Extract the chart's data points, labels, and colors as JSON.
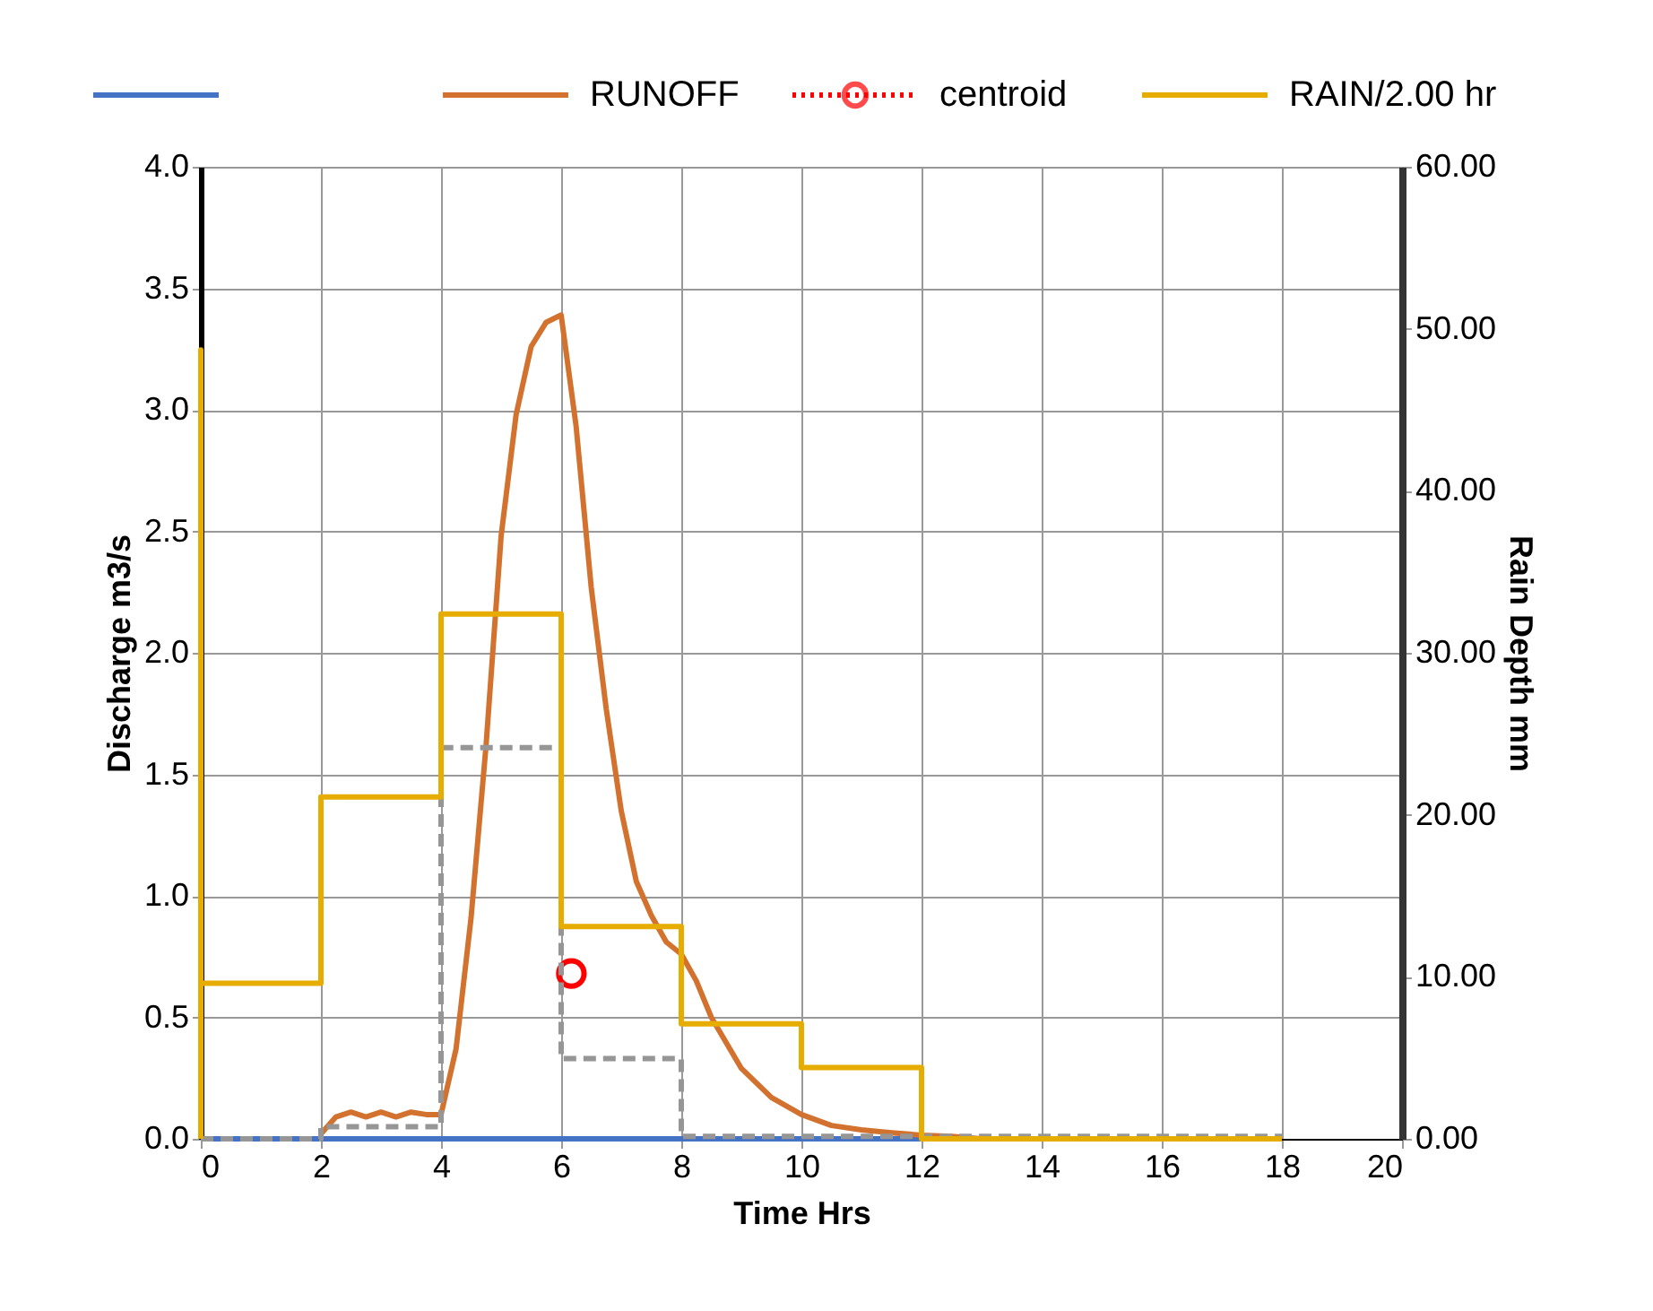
{
  "chart_data": {
    "type": "line",
    "xlabel": "Time Hrs",
    "ylabel": "Discharge m3/s",
    "y2label": "Rain Depth mm",
    "xlim": [
      0,
      20
    ],
    "xticks": [
      0,
      2,
      4,
      6,
      8,
      10,
      12,
      14,
      16,
      18,
      20
    ],
    "ylim": [
      0,
      4
    ],
    "yticks": [
      {
        "value": 0,
        "label": "0.0"
      },
      {
        "value": 0.5,
        "label": "0.5"
      },
      {
        "value": 1,
        "label": "1.0"
      },
      {
        "value": 1.5,
        "label": "1.5"
      },
      {
        "value": 2,
        "label": "2.0"
      },
      {
        "value": 2.5,
        "label": "2.5"
      },
      {
        "value": 3,
        "label": "3.0"
      },
      {
        "value": 3.5,
        "label": "3.5"
      },
      {
        "value": 4,
        "label": "4.0"
      }
    ],
    "y2lim": [
      0,
      60
    ],
    "y2ticks": [
      {
        "value": 0,
        "label": "0.00"
      },
      {
        "value": 10,
        "label": "10.00"
      },
      {
        "value": 20,
        "label": "20.00"
      },
      {
        "value": 30,
        "label": "30.00"
      },
      {
        "value": 40,
        "label": "40.00"
      },
      {
        "value": 50,
        "label": "50.00"
      },
      {
        "value": 60,
        "label": "60.00"
      }
    ],
    "grid": true,
    "legend": "top",
    "marker": "none",
    "line_style": "solid",
    "series": [
      {
        "color": "#4472c4",
        "x": [
          0,
          18
        ],
        "values": [
          0,
          0
        ]
      },
      {
        "name": "RUNOFF",
        "color": "#d2722e",
        "x": [
          2,
          2.25,
          2.5,
          2.75,
          3,
          3.25,
          3.5,
          3.75,
          4,
          4.25,
          4.5,
          4.75,
          5,
          5.25,
          5.5,
          5.75,
          6,
          6.25,
          6.5,
          6.75,
          7,
          7.25,
          7.5,
          7.75,
          8,
          8.25,
          8.5,
          9,
          9.5,
          10,
          10.5,
          11,
          11.5,
          12,
          12.5,
          13
        ],
        "values": [
          0.02,
          0.09,
          0.11,
          0.09,
          0.11,
          0.09,
          0.11,
          0.1,
          0.1,
          0.37,
          0.91,
          1.62,
          2.48,
          2.98,
          3.26,
          3.36,
          3.39,
          2.93,
          2.27,
          1.77,
          1.35,
          1.06,
          0.92,
          0.81,
          0.76,
          0.65,
          0.5,
          0.29,
          0.17,
          0.1,
          0.055,
          0.037,
          0.025,
          0.015,
          0.01,
          0
        ]
      },
      {
        "name": "centroid",
        "type": "scatter",
        "marker": "circle",
        "color": "#ff0000",
        "x": [
          6.17
        ],
        "values": [
          0.68
        ]
      },
      {
        "name": "RAIN/2.00 hr",
        "color": "#e6ac00",
        "axis": "y2",
        "x": [
          0,
          0,
          0,
          2,
          2,
          4,
          4,
          6,
          6,
          8,
          8,
          10,
          10,
          12,
          12,
          18
        ],
        "values": [
          0,
          48.7,
          9.6,
          9.6,
          21.1,
          21.1,
          32.4,
          32.4,
          13.1,
          13.1,
          7.1,
          7.1,
          4.4,
          4.4,
          0,
          0
        ]
      },
      {
        "color": "#969696",
        "line_style": "dashed",
        "x": [
          0,
          2,
          2,
          4,
          4,
          6,
          6,
          8,
          8,
          18
        ],
        "values": [
          0,
          0,
          0.05,
          0.05,
          1.61,
          1.61,
          0.33,
          0.33,
          0.01,
          0.01
        ]
      }
    ]
  }
}
